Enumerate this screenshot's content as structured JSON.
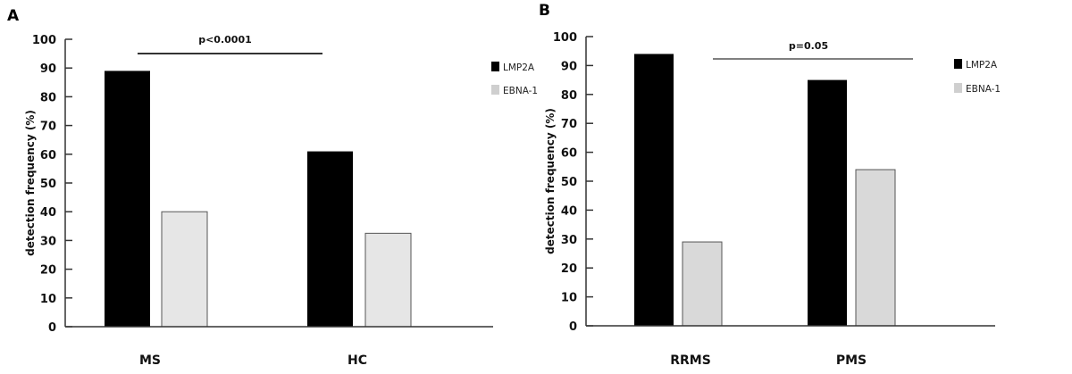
{
  "chart_data": [
    {
      "type": "bar",
      "panel_label": "A",
      "categories": [
        "MS",
        "HC"
      ],
      "series": [
        {
          "name": "LMP2A",
          "values": [
            89,
            61
          ],
          "color": "#000000"
        },
        {
          "name": "EBNA-1",
          "values": [
            40,
            32.5
          ],
          "color": "#e6e6e6"
        }
      ],
      "ylabel": "detection frequency (%)",
      "ylim": [
        0,
        100
      ],
      "yticks": [
        0,
        10,
        20,
        30,
        40,
        50,
        60,
        70,
        80,
        90,
        100
      ],
      "annotation": "p<0.0001",
      "legend": "right",
      "grid": false
    },
    {
      "type": "bar",
      "panel_label": "B",
      "categories": [
        "RRMS",
        "PMS"
      ],
      "series": [
        {
          "name": "LMP2A",
          "values": [
            94,
            85
          ],
          "color": "#000000"
        },
        {
          "name": "EBNA-1",
          "values": [
            29,
            54
          ],
          "color": "#d9d9d9"
        }
      ],
      "ylabel": "detection frequency (%)",
      "ylim": [
        0,
        100
      ],
      "yticks": [
        0,
        10,
        20,
        30,
        40,
        50,
        60,
        70,
        80,
        90,
        100
      ],
      "annotation": "p=0.05",
      "legend": "right",
      "grid": false
    }
  ]
}
